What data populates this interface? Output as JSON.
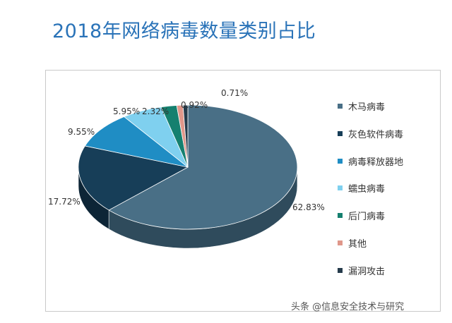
{
  "header": {
    "title": "2018年网络病毒数量类别占比"
  },
  "watermark": {
    "text": "头条 @信息安全技术与研究"
  },
  "chart_data": {
    "type": "pie",
    "title": "2018年网络病毒数量类别占比",
    "legend_position": "right",
    "style": "3d",
    "slices": [
      {
        "label": "木马病毒",
        "value": 62.83,
        "value_label": "62.83%",
        "color": "#496f86",
        "side_color": "#2f4b5c"
      },
      {
        "label": "灰色软件病毒",
        "value": 17.72,
        "value_label": "17.72%",
        "color": "#173e58",
        "side_color": "#0d2536"
      },
      {
        "label": "病毒释放器地",
        "value": 9.55,
        "value_label": "9.55%",
        "color": "#1f8dc4",
        "side_color": "#155e85"
      },
      {
        "label": "蠕虫病毒",
        "value": 5.95,
        "value_label": "5.95%",
        "color": "#7fd0ef",
        "side_color": "#4ea8c8"
      },
      {
        "label": "后门病毒",
        "value": 2.32,
        "value_label": "2.32%",
        "color": "#15806f",
        "side_color": "#0d564a"
      },
      {
        "label": "其他",
        "value": 0.92,
        "value_label": "0.92%",
        "color": "#e0978a",
        "side_color": "#b36d60"
      },
      {
        "label": "漏洞攻击",
        "value": 0.71,
        "value_label": "0.71%",
        "color": "#253b4b",
        "side_color": "#151f27"
      }
    ]
  }
}
